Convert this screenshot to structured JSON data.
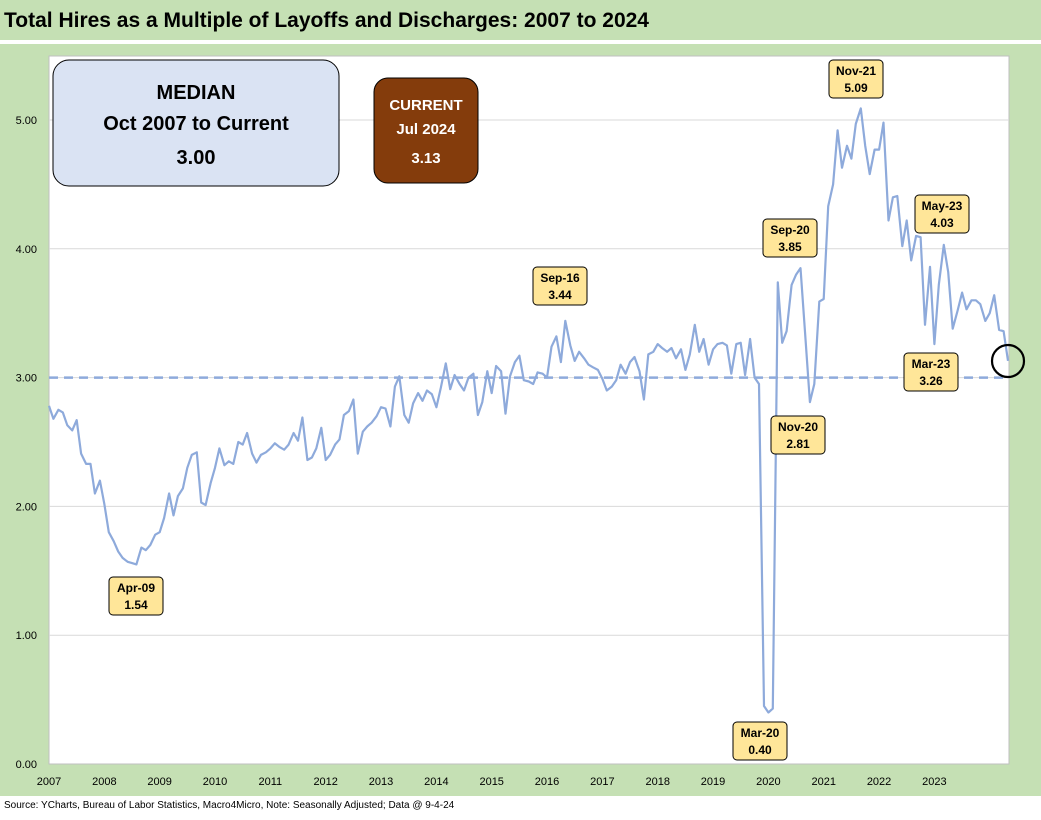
{
  "title": "Total Hires as a Multiple of Layoffs and Discharges: 2007 to 2024",
  "source": "Source: YCharts, Bureau of Labor Statistics, Macro4Micro, Note: Seasonally Adjusted; Data @ 9-4-24",
  "colors": {
    "background": "#c5e0b4",
    "plot": "#ffffff",
    "line": "#8eaadb",
    "median_line": "#8eaadb",
    "annotation_fill": "#ffe699",
    "median_box_fill": "#dae3f3",
    "current_box_fill": "#843c0c"
  },
  "median_box": {
    "line1": "MEDIAN",
    "line2": "Oct 2007 to Current",
    "line3": "3.00"
  },
  "current_box": {
    "line1": "CURRENT",
    "line2": "Jul 2024",
    "line3": "3.13"
  },
  "chart_data": {
    "type": "line",
    "title": "Total Hires as a Multiple of Layoffs and Discharges: 2007 to 2024",
    "xlabel": "",
    "ylabel": "",
    "xlim": [
      2007.0,
      2024.0
    ],
    "ylim": [
      0,
      5.0
    ],
    "y_ticks": [
      "0.00",
      "1.00",
      "2.00",
      "3.00",
      "4.00",
      "5.00"
    ],
    "x_ticks": [
      "2007",
      "2008",
      "2009",
      "2010",
      "2011",
      "2012",
      "2013",
      "2014",
      "2015",
      "2016",
      "2017",
      "2018",
      "2019",
      "2020",
      "2021",
      "2022",
      "2023"
    ],
    "grid": "horizontal",
    "median": 3.0,
    "series": [
      {
        "values": [
          [
            2007.0,
            2.78
          ],
          [
            2007.08,
            2.68
          ],
          [
            2007.17,
            2.75
          ],
          [
            2007.25,
            2.73
          ],
          [
            2007.33,
            2.63
          ],
          [
            2007.42,
            2.59
          ],
          [
            2007.5,
            2.67
          ],
          [
            2007.58,
            2.41
          ],
          [
            2007.67,
            2.33
          ],
          [
            2007.75,
            2.33
          ],
          [
            2007.83,
            2.1
          ],
          [
            2007.92,
            2.2
          ],
          [
            2008.0,
            2.02
          ],
          [
            2008.08,
            1.8
          ],
          [
            2008.17,
            1.73
          ],
          [
            2008.25,
            1.65
          ],
          [
            2008.33,
            1.6
          ],
          [
            2008.42,
            1.57
          ],
          [
            2008.5,
            1.56
          ],
          [
            2008.58,
            1.55
          ],
          [
            2008.67,
            1.68
          ],
          [
            2008.75,
            1.66
          ],
          [
            2008.83,
            1.7
          ],
          [
            2008.92,
            1.78
          ],
          [
            2009.0,
            1.8
          ],
          [
            2009.08,
            1.91
          ],
          [
            2009.17,
            2.1
          ],
          [
            2009.25,
            1.93
          ],
          [
            2009.33,
            2.08
          ],
          [
            2009.42,
            2.14
          ],
          [
            2009.5,
            2.3
          ],
          [
            2009.58,
            2.4
          ],
          [
            2009.67,
            2.42
          ],
          [
            2009.75,
            2.03
          ],
          [
            2009.83,
            2.01
          ],
          [
            2009.92,
            2.18
          ],
          [
            2010.0,
            2.3
          ],
          [
            2010.08,
            2.45
          ],
          [
            2010.17,
            2.32
          ],
          [
            2010.25,
            2.35
          ],
          [
            2010.33,
            2.33
          ],
          [
            2010.42,
            2.5
          ],
          [
            2010.5,
            2.48
          ],
          [
            2010.58,
            2.57
          ],
          [
            2010.67,
            2.41
          ],
          [
            2010.75,
            2.34
          ],
          [
            2010.83,
            2.4
          ],
          [
            2010.92,
            2.42
          ],
          [
            2011.0,
            2.45
          ],
          [
            2011.08,
            2.49
          ],
          [
            2011.17,
            2.46
          ],
          [
            2011.25,
            2.44
          ],
          [
            2011.33,
            2.48
          ],
          [
            2011.42,
            2.57
          ],
          [
            2011.5,
            2.51
          ],
          [
            2011.58,
            2.69
          ],
          [
            2011.67,
            2.36
          ],
          [
            2011.75,
            2.38
          ],
          [
            2011.83,
            2.45
          ],
          [
            2011.92,
            2.61
          ],
          [
            2012.0,
            2.36
          ],
          [
            2012.08,
            2.4
          ],
          [
            2012.17,
            2.48
          ],
          [
            2012.25,
            2.52
          ],
          [
            2012.33,
            2.71
          ],
          [
            2012.42,
            2.74
          ],
          [
            2012.5,
            2.83
          ],
          [
            2012.58,
            2.41
          ],
          [
            2012.67,
            2.58
          ],
          [
            2012.75,
            2.62
          ],
          [
            2012.83,
            2.65
          ],
          [
            2012.92,
            2.7
          ],
          [
            2013.0,
            2.77
          ],
          [
            2013.08,
            2.76
          ],
          [
            2013.17,
            2.62
          ],
          [
            2013.25,
            2.93
          ],
          [
            2013.33,
            3.01
          ],
          [
            2013.42,
            2.71
          ],
          [
            2013.5,
            2.65
          ],
          [
            2013.58,
            2.8
          ],
          [
            2013.67,
            2.88
          ],
          [
            2013.75,
            2.82
          ],
          [
            2013.83,
            2.9
          ],
          [
            2013.92,
            2.87
          ],
          [
            2014.0,
            2.77
          ],
          [
            2014.08,
            2.92
          ],
          [
            2014.17,
            3.11
          ],
          [
            2014.25,
            2.91
          ],
          [
            2014.33,
            3.02
          ],
          [
            2014.42,
            2.95
          ],
          [
            2014.5,
            2.9
          ],
          [
            2014.58,
            3.0
          ],
          [
            2014.67,
            3.03
          ],
          [
            2014.75,
            2.71
          ],
          [
            2014.83,
            2.81
          ],
          [
            2014.92,
            3.05
          ],
          [
            2015.0,
            2.88
          ],
          [
            2015.08,
            3.09
          ],
          [
            2015.17,
            3.05
          ],
          [
            2015.25,
            2.72
          ],
          [
            2015.33,
            3.01
          ],
          [
            2015.42,
            3.12
          ],
          [
            2015.5,
            3.17
          ],
          [
            2015.58,
            2.98
          ],
          [
            2015.67,
            2.97
          ],
          [
            2015.75,
            2.95
          ],
          [
            2015.83,
            3.04
          ],
          [
            2015.92,
            3.03
          ],
          [
            2016.0,
            3.0
          ],
          [
            2016.08,
            3.24
          ],
          [
            2016.17,
            3.32
          ],
          [
            2016.25,
            3.12
          ],
          [
            2016.33,
            3.44
          ],
          [
            2016.42,
            3.25
          ],
          [
            2016.5,
            3.13
          ],
          [
            2016.58,
            3.2
          ],
          [
            2016.67,
            3.15
          ],
          [
            2016.75,
            3.1
          ],
          [
            2016.83,
            3.08
          ],
          [
            2016.92,
            3.06
          ],
          [
            2017.0,
            2.99
          ],
          [
            2017.08,
            2.9
          ],
          [
            2017.17,
            2.93
          ],
          [
            2017.25,
            2.98
          ],
          [
            2017.33,
            3.1
          ],
          [
            2017.42,
            3.03
          ],
          [
            2017.5,
            3.12
          ],
          [
            2017.58,
            3.16
          ],
          [
            2017.67,
            3.05
          ],
          [
            2017.75,
            2.83
          ],
          [
            2017.83,
            3.18
          ],
          [
            2017.92,
            3.2
          ],
          [
            2018.0,
            3.26
          ],
          [
            2018.08,
            3.23
          ],
          [
            2018.17,
            3.2
          ],
          [
            2018.25,
            3.23
          ],
          [
            2018.33,
            3.15
          ],
          [
            2018.42,
            3.22
          ],
          [
            2018.5,
            3.06
          ],
          [
            2018.58,
            3.18
          ],
          [
            2018.67,
            3.41
          ],
          [
            2018.75,
            3.2
          ],
          [
            2018.83,
            3.3
          ],
          [
            2018.92,
            3.1
          ],
          [
            2019.0,
            3.22
          ],
          [
            2019.08,
            3.26
          ],
          [
            2019.17,
            3.27
          ],
          [
            2019.25,
            3.25
          ],
          [
            2019.33,
            3.03
          ],
          [
            2019.42,
            3.26
          ],
          [
            2019.5,
            3.27
          ],
          [
            2019.58,
            3.02
          ],
          [
            2019.67,
            3.3
          ],
          [
            2019.75,
            3.0
          ],
          [
            2019.83,
            2.95
          ],
          [
            2019.92,
            0.45
          ],
          [
            2020.0,
            0.4
          ],
          [
            2020.08,
            0.43
          ],
          [
            2020.17,
            3.74
          ],
          [
            2020.25,
            3.27
          ],
          [
            2020.33,
            3.36
          ],
          [
            2020.42,
            3.72
          ],
          [
            2020.5,
            3.8
          ],
          [
            2020.58,
            3.85
          ],
          [
            2020.67,
            3.3
          ],
          [
            2020.75,
            2.81
          ],
          [
            2020.83,
            2.95
          ],
          [
            2020.92,
            3.59
          ],
          [
            2021.0,
            3.61
          ],
          [
            2021.08,
            4.33
          ],
          [
            2021.17,
            4.5
          ],
          [
            2021.25,
            4.92
          ],
          [
            2021.33,
            4.63
          ],
          [
            2021.42,
            4.8
          ],
          [
            2021.5,
            4.7
          ],
          [
            2021.58,
            4.97
          ],
          [
            2021.67,
            5.09
          ],
          [
            2021.75,
            4.8
          ],
          [
            2021.83,
            4.58
          ],
          [
            2021.92,
            4.77
          ],
          [
            2022.0,
            4.77
          ],
          [
            2022.08,
            4.98
          ],
          [
            2022.17,
            4.22
          ],
          [
            2022.25,
            4.4
          ],
          [
            2022.33,
            4.41
          ],
          [
            2022.42,
            4.02
          ],
          [
            2022.5,
            4.22
          ],
          [
            2022.58,
            3.91
          ],
          [
            2022.67,
            4.1
          ],
          [
            2022.75,
            4.09
          ],
          [
            2022.83,
            3.41
          ],
          [
            2022.92,
            3.86
          ],
          [
            2023.0,
            3.26
          ],
          [
            2023.08,
            3.72
          ],
          [
            2023.17,
            4.03
          ],
          [
            2023.25,
            3.82
          ],
          [
            2023.33,
            3.38
          ],
          [
            2023.42,
            3.52
          ],
          [
            2023.5,
            3.66
          ],
          [
            2023.58,
            3.53
          ],
          [
            2023.67,
            3.6
          ],
          [
            2023.75,
            3.6
          ],
          [
            2023.83,
            3.57
          ],
          [
            2023.92,
            3.44
          ],
          [
            2024.0,
            3.5
          ],
          [
            2024.08,
            3.64
          ],
          [
            2024.17,
            3.37
          ],
          [
            2024.25,
            3.36
          ],
          [
            2024.33,
            3.13
          ]
        ]
      }
    ],
    "annotations": [
      {
        "label": "Apr-09",
        "value": "1.54"
      },
      {
        "label": "Sep-16",
        "value": "3.44"
      },
      {
        "label": "Mar-20",
        "value": "0.40"
      },
      {
        "label": "Sep-20",
        "value": "3.85"
      },
      {
        "label": "Nov-20",
        "value": "2.81"
      },
      {
        "label": "Nov-21",
        "value": "5.09"
      },
      {
        "label": "May-23",
        "value": "4.03"
      },
      {
        "label": "Mar-23",
        "value": "3.26"
      }
    ]
  }
}
